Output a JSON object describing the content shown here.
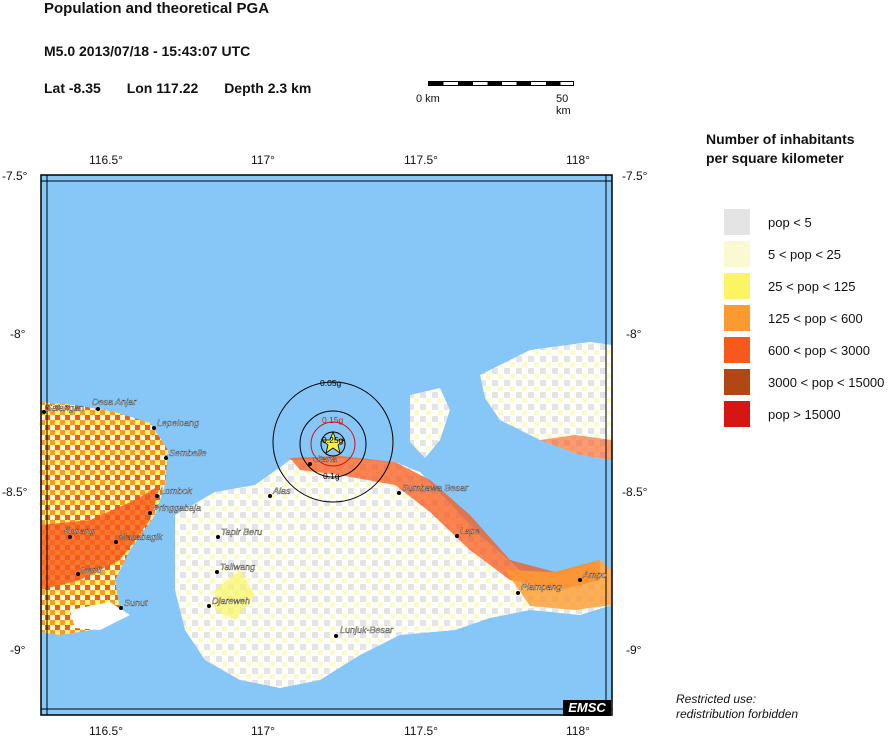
{
  "header": {
    "title": "Population and theoretical PGA",
    "event": "M5.0  2013/07/18 - 15:43:07 UTC",
    "lat": "Lat -8.35",
    "lon": "Lon 117.22",
    "depth": "Depth  2.3 km"
  },
  "scale": {
    "left_label": "0 km",
    "right_label": "50 km"
  },
  "axes": {
    "lon_ticks": [
      "116.5°",
      "117°",
      "117.5°",
      "118°"
    ],
    "lat_ticks": [
      "-7.5°",
      "-8°",
      "-8.5°",
      "-9°"
    ]
  },
  "pga": {
    "labels": [
      "0.05g",
      "0.15g",
      "0.25g",
      "0.1g"
    ]
  },
  "places": [
    "Salangan",
    "Desa Anjar",
    "Lepeloang",
    "Sembelie",
    "Lombok",
    "Pringgabaja",
    "Kopang",
    "Masabagik",
    "Genti",
    "Sunut",
    "Alas",
    "Utana",
    "Tapir Beru",
    "Taliwang",
    "Djareweh",
    "Lunjuk-Besar",
    "Sumbawa Besar",
    "Lape",
    "Plampang",
    "Ampo"
  ],
  "legend": {
    "title_line1": "Number of inhabitants",
    "title_line2": "per square kilometer",
    "items": [
      {
        "label": "pop < 5",
        "color": "#e4e4e4"
      },
      {
        "label": "5 < pop < 25",
        "color": "#fbf9cf"
      },
      {
        "label": "25 < pop < 125",
        "color": "#fbf563"
      },
      {
        "label": "125 < pop < 600",
        "color": "#fb9a2f"
      },
      {
        "label": "600 < pop < 3000",
        "color": "#f7591b"
      },
      {
        "label": "3000 < pop < 15000",
        "color": "#b04714"
      },
      {
        "label": "pop > 15000",
        "color": "#d51613"
      }
    ]
  },
  "colors": {
    "sea": "#87c7f7",
    "land_low": "#ffffff",
    "pga_outer": "#000000",
    "pga_mid": "#d51613",
    "epicenter": "#f5f040"
  },
  "note": {
    "line1": "Restricted use:",
    "line2": "redistribution forbidden"
  },
  "brand": "EMSC"
}
